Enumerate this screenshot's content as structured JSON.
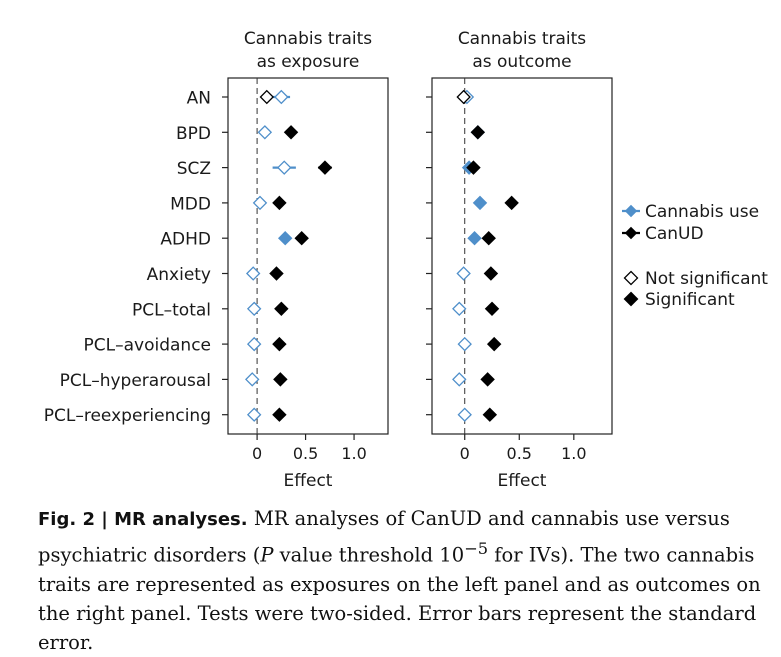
{
  "chart_data": {
    "type": "forest",
    "rows": [
      "AN",
      "BPD",
      "SCZ",
      "MDD",
      "ADHD",
      "Anxiety",
      "PCL–total",
      "PCL–avoidance",
      "PCL–hyperarousal",
      "PCL–reexperiencing"
    ],
    "xlabel": "Effect",
    "xlim": [
      -0.3,
      1.35
    ],
    "xticks": [
      0,
      0.5,
      1.0
    ],
    "xtick_labels": [
      "0",
      "0.5",
      "1.0"
    ],
    "colors": {
      "cannabis_use": "#4f8fca",
      "canud": "#000000"
    },
    "panels": [
      {
        "title_line1": "Cannabis traits",
        "title_line2": "as exposure",
        "series": [
          {
            "name": "Cannabis use",
            "values": [
              0.25,
              0.08,
              0.28,
              0.03,
              0.29,
              -0.04,
              -0.03,
              -0.03,
              -0.05,
              -0.03
            ],
            "errors": [
              0.09,
              0.05,
              0.12,
              0.04,
              0.05,
              0.04,
              0.04,
              0.04,
              0.04,
              0.04
            ],
            "significant": [
              false,
              false,
              false,
              false,
              true,
              false,
              false,
              false,
              false,
              false
            ]
          },
          {
            "name": "CanUD",
            "values": [
              0.1,
              0.35,
              0.7,
              0.23,
              0.46,
              0.2,
              0.25,
              0.23,
              0.24,
              0.23
            ],
            "errors": [
              0.05,
              0.03,
              0.07,
              0.02,
              0.03,
              0.02,
              0.02,
              0.02,
              0.02,
              0.02
            ],
            "significant": [
              false,
              true,
              true,
              true,
              true,
              true,
              true,
              true,
              true,
              true
            ]
          }
        ]
      },
      {
        "title_line1": "Cannabis traits",
        "title_line2": "as outcome",
        "series": [
          {
            "name": "Cannabis use",
            "values": [
              0.02,
              0.12,
              0.04,
              0.14,
              0.09,
              -0.01,
              -0.05,
              0.0,
              -0.05,
              0.0
            ],
            "errors": [
              0.02,
              0.02,
              0.02,
              0.02,
              0.02,
              0.03,
              0.03,
              0.03,
              0.03,
              0.03
            ],
            "significant": [
              false,
              true,
              true,
              true,
              true,
              false,
              false,
              false,
              false,
              false
            ]
          },
          {
            "name": "CanUD",
            "values": [
              -0.01,
              0.12,
              0.08,
              0.43,
              0.22,
              0.24,
              0.25,
              0.27,
              0.21,
              0.23
            ],
            "errors": [
              0.02,
              0.03,
              0.03,
              0.02,
              0.02,
              0.04,
              0.03,
              0.03,
              0.03,
              0.03
            ],
            "significant": [
              false,
              true,
              true,
              true,
              true,
              true,
              true,
              true,
              true,
              true
            ]
          }
        ]
      }
    ],
    "legend": {
      "series": [
        "Cannabis use",
        "CanUD"
      ],
      "markers": [
        "Not significant",
        "Significant"
      ],
      "position": "right"
    }
  },
  "caption": {
    "label": "Fig. 2 | MR analyses.",
    "text_before_sup": " MR analyses of CanUD and cannabis use versus psychiatric disorders (",
    "p_italic": "P",
    "text_mid": " value threshold 10",
    "superscript": "−5",
    "text_after_sup": " for IVs). The two cannabis traits are represented as exposures on the left panel and as outcomes on the right panel. Tests were two-sided. Error bars represent the standard error."
  }
}
